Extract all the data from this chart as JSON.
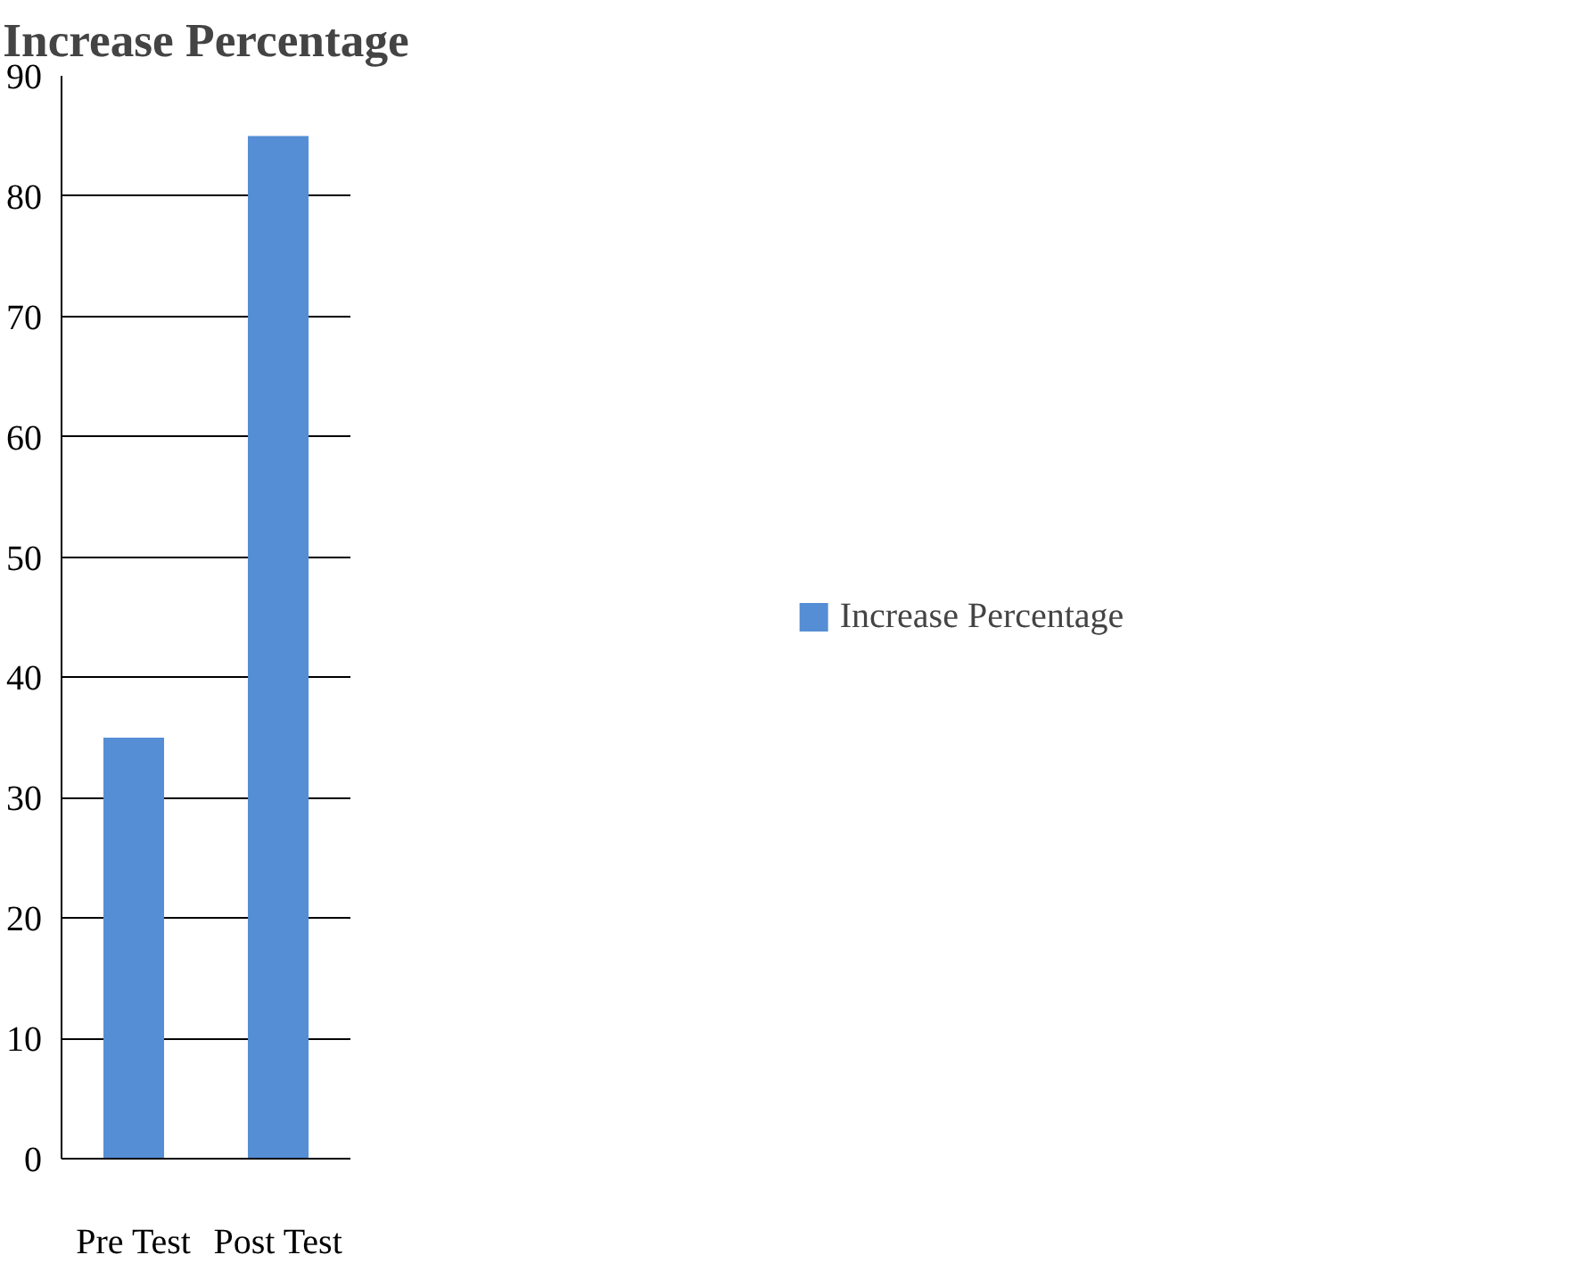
{
  "chart_data": {
    "type": "bar",
    "title": "Increase Percentage",
    "categories": [
      "Pre Test",
      "Post Test"
    ],
    "series": [
      {
        "name": "Increase Percentage",
        "color": "#558ed5",
        "values": [
          35,
          85
        ]
      }
    ],
    "ylim": [
      0,
      90
    ],
    "yticks": [
      0,
      10,
      20,
      30,
      40,
      50,
      60,
      70,
      80,
      90
    ],
    "grid": "y",
    "legend": "right"
  }
}
